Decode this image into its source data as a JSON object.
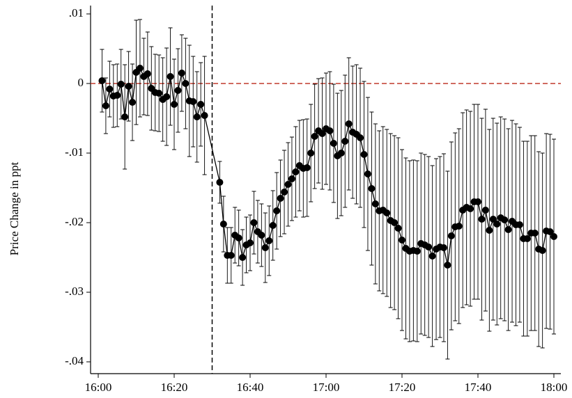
{
  "chart_data": {
    "type": "errorbar-line",
    "ylabel": "Price Change in ppt",
    "color": "#000000",
    "hline": 0,
    "hline_color": "#c0392b",
    "vline": "16:30",
    "vline_color": "#000000",
    "xlim": [
      "16:00",
      "18:00"
    ],
    "xticks": [
      "16:00",
      "16:20",
      "16:40",
      "17:00",
      "17:20",
      "17:40",
      "18:00"
    ],
    "ylim": [
      -0.0417,
      0.0112
    ],
    "yticks": [
      {
        "value": 0.01,
        "label": ".01"
      },
      0,
      {
        "value": -0.01,
        "label": "-.01"
      },
      {
        "value": -0.02,
        "label": "-.02"
      },
      {
        "value": -0.03,
        "label": "-.03"
      },
      {
        "value": -0.04,
        "label": "-.04"
      }
    ],
    "x": [
      "16:01",
      "16:02",
      "16:03",
      "16:04",
      "16:05",
      "16:06",
      "16:07",
      "16:08",
      "16:09",
      "16:10",
      "16:11",
      "16:12",
      "16:13",
      "16:14",
      "16:15",
      "16:16",
      "16:17",
      "16:18",
      "16:19",
      "16:20",
      "16:21",
      "16:22",
      "16:23",
      "16:24",
      "16:25",
      "16:26",
      "16:27",
      "16:28",
      "16:32",
      "16:33",
      "16:34",
      "16:35",
      "16:36",
      "16:37",
      "16:38",
      "16:39",
      "16:40",
      "16:41",
      "16:42",
      "16:43",
      "16:44",
      "16:45",
      "16:46",
      "16:47",
      "16:48",
      "16:49",
      "16:50",
      "16:51",
      "16:52",
      "16:53",
      "16:54",
      "16:55",
      "16:56",
      "16:57",
      "16:58",
      "16:59",
      "17:00",
      "17:01",
      "17:02",
      "17:03",
      "17:04",
      "17:05",
      "17:06",
      "17:07",
      "17:08",
      "17:09",
      "17:10",
      "17:11",
      "17:12",
      "17:13",
      "17:14",
      "17:15",
      "17:16",
      "17:17",
      "17:18",
      "17:19",
      "17:20",
      "17:21",
      "17:22",
      "17:23",
      "17:24",
      "17:25",
      "17:26",
      "17:27",
      "17:28",
      "17:29",
      "17:30",
      "17:31",
      "17:32",
      "17:33",
      "17:34",
      "17:35",
      "17:36",
      "17:37",
      "17:38",
      "17:39",
      "17:40",
      "17:41",
      "17:42",
      "17:43",
      "17:44",
      "17:45",
      "17:46",
      "17:47",
      "17:48",
      "17:49",
      "17:50",
      "17:51",
      "17:52",
      "17:53",
      "17:54",
      "17:55",
      "17:56",
      "17:57",
      "17:58",
      "17:59",
      "18:00"
    ],
    "values": [
      0.0004,
      -0.0032,
      -0.0008,
      -0.0018,
      -0.0017,
      -0.0001,
      -0.0048,
      -0.0004,
      -0.0027,
      0.0016,
      0.0022,
      0.001,
      0.0014,
      -0.0007,
      -0.0013,
      -0.0014,
      -0.0023,
      -0.0019,
      0.001,
      -0.003,
      -0.001,
      0.0015,
      0.0,
      -0.0025,
      -0.0026,
      -0.0048,
      -0.003,
      -0.0046,
      -0.0142,
      -0.0202,
      -0.0247,
      -0.0247,
      -0.0218,
      -0.0222,
      -0.025,
      -0.0232,
      -0.0229,
      -0.02,
      -0.0213,
      -0.0218,
      -0.0236,
      -0.0226,
      -0.0204,
      -0.0183,
      -0.0165,
      -0.0156,
      -0.0145,
      -0.0137,
      -0.0127,
      -0.0118,
      -0.0122,
      -0.0121,
      -0.01,
      -0.0076,
      -0.0068,
      -0.0072,
      -0.0065,
      -0.0068,
      -0.0086,
      -0.0104,
      -0.01,
      -0.0083,
      -0.0058,
      -0.007,
      -0.0073,
      -0.0078,
      -0.0102,
      -0.013,
      -0.0151,
      -0.0173,
      -0.0183,
      -0.0182,
      -0.0186,
      -0.0197,
      -0.02,
      -0.0208,
      -0.0225,
      -0.0237,
      -0.0241,
      -0.024,
      -0.0241,
      -0.023,
      -0.0232,
      -0.0235,
      -0.0248,
      -0.0238,
      -0.0235,
      -0.0236,
      -0.0261,
      -0.0219,
      -0.0206,
      -0.0205,
      -0.0182,
      -0.0178,
      -0.018,
      -0.017,
      -0.017,
      -0.0195,
      -0.0182,
      -0.0211,
      -0.0195,
      -0.0202,
      -0.0193,
      -0.0196,
      -0.021,
      -0.0198,
      -0.0203,
      -0.0203,
      -0.0223,
      -0.0223,
      -0.0215,
      -0.0215,
      -0.0238,
      -0.024,
      -0.0212,
      -0.0213,
      -0.022
    ],
    "errors": [
      0.0045,
      0.004,
      0.004,
      0.0045,
      0.0045,
      0.005,
      0.0075,
      0.005,
      0.0055,
      0.0075,
      0.007,
      0.0055,
      0.006,
      0.006,
      0.0055,
      0.0055,
      0.006,
      0.007,
      0.007,
      0.0065,
      0.006,
      0.0055,
      0.0065,
      0.008,
      0.0065,
      0.0065,
      0.006,
      0.0085,
      0.003,
      0.004,
      0.004,
      0.004,
      0.004,
      0.004,
      0.004,
      0.004,
      0.004,
      0.0045,
      0.0045,
      0.0045,
      0.005,
      0.005,
      0.005,
      0.0055,
      0.0055,
      0.006,
      0.006,
      0.006,
      0.0065,
      0.0065,
      0.007,
      0.007,
      0.007,
      0.0075,
      0.0075,
      0.008,
      0.008,
      0.0085,
      0.0085,
      0.009,
      0.009,
      0.0095,
      0.0095,
      0.0095,
      0.01,
      0.01,
      0.0105,
      0.011,
      0.011,
      0.0115,
      0.0115,
      0.012,
      0.012,
      0.0125,
      0.0125,
      0.013,
      0.013,
      0.013,
      0.013,
      0.013,
      0.013,
      0.013,
      0.013,
      0.013,
      0.013,
      0.013,
      0.013,
      0.0135,
      0.0135,
      0.0135,
      0.0135,
      0.014,
      0.014,
      0.014,
      0.014,
      0.014,
      0.014,
      0.0145,
      0.0145,
      0.0145,
      0.0145,
      0.0145,
      0.0145,
      0.0145,
      0.0145,
      0.0145,
      0.0145,
      0.014,
      0.014,
      0.014,
      0.014,
      0.014,
      0.014,
      0.014,
      0.014,
      0.014,
      0.014
    ]
  }
}
